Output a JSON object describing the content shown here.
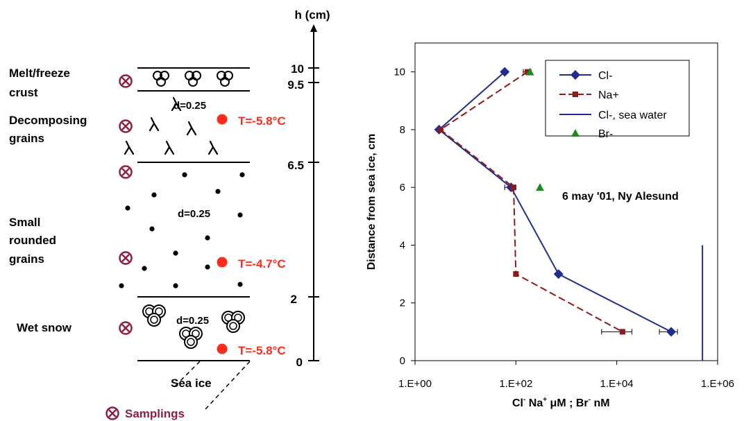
{
  "colors": {
    "cl": "#1F2D8C",
    "na": "#8B1A1A",
    "br": "#1E8A1E",
    "temp": "#FF2A1A",
    "sampling": "#8B2040",
    "black": "#000000"
  },
  "diagram": {
    "h_label": "h (cm)",
    "heights": [
      "10",
      "9.5",
      "6.5",
      "2",
      "0"
    ],
    "layers": {
      "crust": [
        "Melt/freeze",
        "crust"
      ],
      "decomposing": [
        "Decomposing",
        "grains"
      ],
      "small": [
        "Small",
        "rounded",
        "grains"
      ],
      "wet": "Wet snow"
    },
    "grain_sizes": [
      "d=0.25",
      "d=0.25",
      "d=0.25"
    ],
    "temperatures": [
      "T=-5.8°C",
      "T=-4.7°C",
      "T=-5.8°C"
    ],
    "sea_ice": "Sea ice",
    "legend_samplings": "Samplings"
  },
  "chart_data": {
    "type": "scatter",
    "title": "6 may '01, Ny Alesund",
    "ylabel": "Distance from sea ice, cm",
    "xlabel": {
      "cl": "Cl",
      "na": " Na",
      "unit1": " μM ; Br",
      "unit2": "  nM"
    },
    "xscale": "log",
    "xlim": [
      1,
      1000000
    ],
    "ylim": [
      0,
      11
    ],
    "xticks": [
      1,
      100,
      10000,
      1000000
    ],
    "xtick_labels": [
      "1.E+00",
      "1.E+02",
      "1.E+04",
      "1.E+06"
    ],
    "yticks": [
      0,
      2,
      4,
      6,
      8,
      10
    ],
    "ytick_labels": [
      "0",
      "2",
      "4",
      "6",
      "8",
      "10"
    ],
    "legend_position": "top-right",
    "series": [
      {
        "name": "Cl-",
        "style": "line-diamond",
        "points": [
          [
            60,
            10
          ],
          [
            3,
            8
          ],
          [
            80,
            6
          ],
          [
            700,
            3
          ],
          [
            120000,
            1
          ]
        ],
        "errors": [
          [
            null,
            null
          ],
          [
            null,
            null
          ],
          [
            60,
            100
          ],
          [
            null,
            null
          ],
          [
            70000,
            160000
          ]
        ]
      },
      {
        "name": "Na+",
        "style": "dashed-square",
        "points": [
          [
            170,
            10
          ],
          [
            3.2,
            8
          ],
          [
            90,
            6
          ],
          [
            100,
            3
          ],
          [
            13000,
            1
          ]
        ],
        "errors": [
          [
            140,
            200
          ],
          [
            null,
            null
          ],
          [
            null,
            null
          ],
          [
            90,
            110
          ],
          [
            5000,
            20000
          ]
        ]
      },
      {
        "name": "Cl-, sea water",
        "style": "line",
        "points": [
          [
            500000,
            0
          ],
          [
            500000,
            4
          ]
        ]
      },
      {
        "name": "Br-",
        "style": "triangle",
        "points": [
          [
            190,
            10
          ],
          [
            300,
            6
          ]
        ]
      }
    ]
  }
}
